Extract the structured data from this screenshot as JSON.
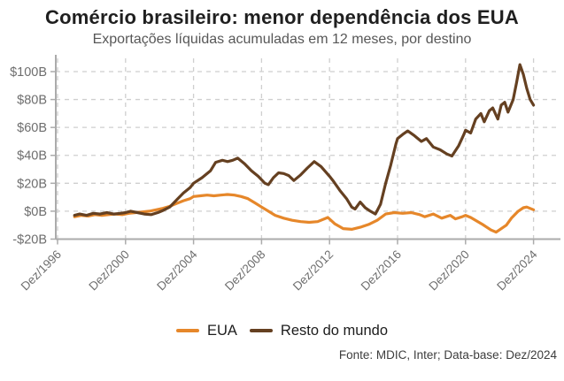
{
  "title": "Comércio brasileiro: menor dependência dos EUA",
  "subtitle": "Exportações líquidas acumuladas em 12 meses, por destino",
  "source": "Fonte: MDIC, Inter; Data-base: Dez/2024",
  "legend": {
    "items": [
      {
        "label": "EUA",
        "color": "#E6872A"
      },
      {
        "label": "Resto do mundo",
        "color": "#654021"
      }
    ]
  },
  "colors": {
    "grid": "#cfcfcf",
    "axis": "#ababab",
    "tick_label": "#6e6e6e",
    "orange": "#E6872A",
    "brown": "#654021"
  },
  "chart_data": {
    "type": "line",
    "title": "Comércio brasileiro: menor dependência dos EUA",
    "subtitle": "Exportações líquidas acumuladas em 12 meses, por destino",
    "x_unit": "years since Dez/1996",
    "xlim": [
      0,
      29.5
    ],
    "ylim": [
      -20,
      110
    ],
    "grid": "dashed",
    "legend_position": "bottom",
    "x_ticks": [
      {
        "pos": 0,
        "label": "Dez/1996"
      },
      {
        "pos": 4,
        "label": "Dez/2000"
      },
      {
        "pos": 8,
        "label": "Dez/2004"
      },
      {
        "pos": 12,
        "label": "Dez/2008"
      },
      {
        "pos": 16,
        "label": "Dez/2012"
      },
      {
        "pos": 20,
        "label": "Dez/2016"
      },
      {
        "pos": 24,
        "label": "Dez/2020"
      },
      {
        "pos": 28,
        "label": "Dez/2024"
      }
    ],
    "y_ticks": [
      {
        "value": 100,
        "label": "$100B"
      },
      {
        "value": 80,
        "label": "$80B"
      },
      {
        "value": 60,
        "label": "$60B"
      },
      {
        "value": 40,
        "label": "$40B"
      },
      {
        "value": 20,
        "label": "$20B"
      },
      {
        "value": 0,
        "label": "$0B"
      },
      {
        "value": -20,
        "label": "-$20B"
      }
    ],
    "series": [
      {
        "name": "EUA",
        "color": "#E6872A",
        "points": [
          [
            1.0,
            -4
          ],
          [
            1.4,
            -3
          ],
          [
            1.8,
            -3.5
          ],
          [
            2.2,
            -2.5
          ],
          [
            2.6,
            -3
          ],
          [
            3.0,
            -2.5
          ],
          [
            3.4,
            -2
          ],
          [
            3.8,
            -2.5
          ],
          [
            4.2,
            -1.5
          ],
          [
            4.6,
            -1
          ],
          [
            5.0,
            -0.5
          ],
          [
            5.4,
            0
          ],
          [
            5.8,
            1
          ],
          [
            6.2,
            2
          ],
          [
            6.6,
            3.5
          ],
          [
            7.0,
            5.5
          ],
          [
            7.4,
            7.5
          ],
          [
            7.8,
            9
          ],
          [
            8.0,
            10.5
          ],
          [
            8.4,
            11
          ],
          [
            8.8,
            11.5
          ],
          [
            9.2,
            11
          ],
          [
            9.6,
            11.5
          ],
          [
            10.0,
            12
          ],
          [
            10.4,
            11.5
          ],
          [
            10.8,
            10.5
          ],
          [
            11.2,
            9
          ],
          [
            11.6,
            6
          ],
          [
            12.0,
            3
          ],
          [
            12.4,
            0
          ],
          [
            12.8,
            -3
          ],
          [
            13.3,
            -5
          ],
          [
            13.8,
            -6.5
          ],
          [
            14.3,
            -7.5
          ],
          [
            14.8,
            -8
          ],
          [
            15.3,
            -7.5
          ],
          [
            15.9,
            -4.5
          ],
          [
            16.3,
            -9
          ],
          [
            16.8,
            -12.5
          ],
          [
            17.3,
            -13
          ],
          [
            17.8,
            -11.5
          ],
          [
            18.3,
            -9.5
          ],
          [
            18.8,
            -6.5
          ],
          [
            19.3,
            -2
          ],
          [
            19.8,
            -1
          ],
          [
            20.3,
            -1.5
          ],
          [
            20.8,
            -1
          ],
          [
            21.3,
            -2.5
          ],
          [
            21.6,
            -4
          ],
          [
            22.1,
            -2
          ],
          [
            22.6,
            -5
          ],
          [
            23.1,
            -3
          ],
          [
            23.4,
            -5.5
          ],
          [
            23.8,
            -4
          ],
          [
            24.0,
            -3
          ],
          [
            24.3,
            -4.5
          ],
          [
            25.0,
            -9.5
          ],
          [
            25.5,
            -13.5
          ],
          [
            25.8,
            -15
          ],
          [
            26.4,
            -10
          ],
          [
            26.7,
            -5
          ],
          [
            27.1,
            0
          ],
          [
            27.4,
            2.5
          ],
          [
            27.6,
            3
          ],
          [
            28.0,
            1
          ]
        ]
      },
      {
        "name": "Resto do mundo",
        "color": "#654021",
        "points": [
          [
            1.0,
            -3
          ],
          [
            1.3,
            -2
          ],
          [
            1.7,
            -3
          ],
          [
            2.1,
            -1.5
          ],
          [
            2.5,
            -2
          ],
          [
            2.9,
            -1
          ],
          [
            3.3,
            -2
          ],
          [
            3.7,
            -1.5
          ],
          [
            4.0,
            -1
          ],
          [
            4.3,
            0
          ],
          [
            4.7,
            -1
          ],
          [
            5.1,
            -2
          ],
          [
            5.5,
            -2.5
          ],
          [
            5.9,
            -1
          ],
          [
            6.2,
            0.5
          ],
          [
            6.6,
            3
          ],
          [
            7.0,
            8
          ],
          [
            7.4,
            13
          ],
          [
            7.8,
            17
          ],
          [
            8.0,
            20
          ],
          [
            8.5,
            24
          ],
          [
            9.0,
            29
          ],
          [
            9.3,
            35
          ],
          [
            9.7,
            36.5
          ],
          [
            10.0,
            35.5
          ],
          [
            10.3,
            36.5
          ],
          [
            10.6,
            38
          ],
          [
            11.0,
            34
          ],
          [
            11.4,
            29
          ],
          [
            11.8,
            25
          ],
          [
            12.2,
            20
          ],
          [
            12.4,
            19
          ],
          [
            12.7,
            24
          ],
          [
            13.0,
            27.5
          ],
          [
            13.3,
            27
          ],
          [
            13.6,
            25.5
          ],
          [
            13.9,
            22
          ],
          [
            14.3,
            26
          ],
          [
            14.7,
            31
          ],
          [
            15.1,
            35.5
          ],
          [
            15.5,
            32
          ],
          [
            16.0,
            25
          ],
          [
            16.2,
            22
          ],
          [
            16.6,
            15
          ],
          [
            17.0,
            9
          ],
          [
            17.3,
            3
          ],
          [
            17.5,
            1.5
          ],
          [
            17.8,
            6.5
          ],
          [
            18.1,
            2.5
          ],
          [
            18.4,
            0
          ],
          [
            18.7,
            -2
          ],
          [
            19.0,
            5
          ],
          [
            19.3,
            20
          ],
          [
            19.6,
            33
          ],
          [
            19.9,
            48
          ],
          [
            20.0,
            52
          ],
          [
            20.3,
            55
          ],
          [
            20.6,
            57.5
          ],
          [
            21.0,
            54
          ],
          [
            21.4,
            50
          ],
          [
            21.7,
            52
          ],
          [
            22.1,
            46
          ],
          [
            22.5,
            44
          ],
          [
            22.9,
            41
          ],
          [
            23.2,
            39.5
          ],
          [
            23.6,
            47
          ],
          [
            23.9,
            55
          ],
          [
            24.0,
            58
          ],
          [
            24.3,
            56
          ],
          [
            24.6,
            66
          ],
          [
            24.9,
            70
          ],
          [
            25.1,
            64
          ],
          [
            25.4,
            72
          ],
          [
            25.6,
            74
          ],
          [
            25.9,
            66
          ],
          [
            26.1,
            76
          ],
          [
            26.3,
            78
          ],
          [
            26.5,
            71
          ],
          [
            26.8,
            80
          ],
          [
            27.0,
            92
          ],
          [
            27.2,
            105
          ],
          [
            27.4,
            98
          ],
          [
            27.6,
            88
          ],
          [
            27.8,
            80
          ],
          [
            28.0,
            76
          ]
        ]
      }
    ]
  }
}
